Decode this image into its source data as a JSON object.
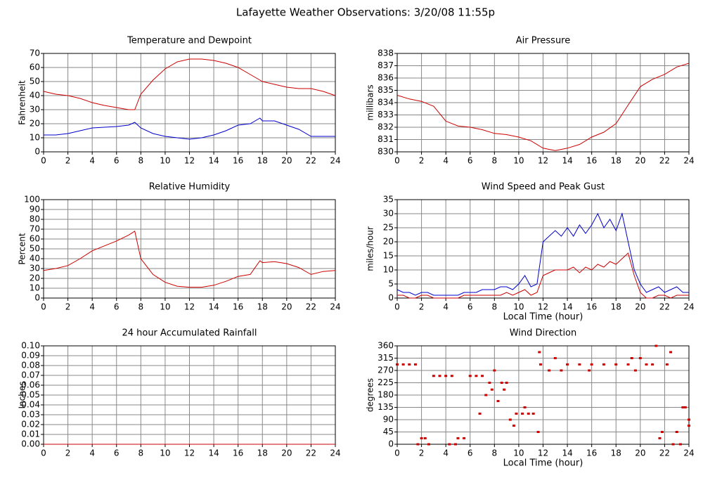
{
  "title": "Lafayette Weather Observations: 3/20/08 11:55p",
  "chart_data": [
    {
      "type": "line",
      "title": "Temperature and Dewpoint",
      "ylabel": "Fahrenheit",
      "x": [
        0,
        1,
        2,
        3,
        4,
        5,
        6,
        7,
        7.5,
        8,
        9,
        10,
        11,
        12,
        13,
        14,
        15,
        16,
        17,
        17.8,
        18,
        19,
        20,
        21,
        22,
        23,
        24
      ],
      "series": [
        {
          "color": "#cc0000",
          "values": [
            43,
            41,
            40,
            38,
            35,
            33,
            31.5,
            30,
            30,
            41,
            51,
            59,
            64,
            66,
            66,
            65,
            63,
            60,
            55,
            51,
            50,
            48,
            46,
            45,
            45,
            43,
            40
          ]
        },
        {
          "color": "#0000cc",
          "values": [
            12,
            12,
            13,
            15,
            17,
            17.5,
            18,
            19,
            21,
            17,
            13,
            11,
            10,
            9,
            10,
            12,
            15,
            19,
            20,
            24,
            22,
            22,
            19,
            16,
            11,
            11,
            11
          ]
        }
      ],
      "xlim": [
        0,
        24
      ],
      "xticks": [
        0,
        2,
        4,
        6,
        8,
        10,
        12,
        14,
        16,
        18,
        20,
        22,
        24
      ],
      "ylim": [
        0,
        70
      ],
      "yticks": [
        0,
        10,
        20,
        30,
        40,
        50,
        60,
        70
      ],
      "grid": true
    },
    {
      "type": "line",
      "title": "Air Pressure",
      "ylabel": "millibars",
      "x": [
        0,
        1,
        2,
        3,
        4,
        5,
        6,
        7,
        8,
        9,
        10,
        11,
        12,
        13,
        14,
        15,
        16,
        17,
        18,
        19,
        20,
        21,
        22,
        23,
        24
      ],
      "series": [
        {
          "color": "#cc0000",
          "values": [
            834.6,
            834.3,
            834.1,
            833.7,
            832.5,
            832.1,
            832.0,
            831.8,
            831.5,
            831.4,
            831.2,
            830.9,
            830.3,
            830.1,
            830.3,
            830.6,
            831.2,
            831.6,
            832.3,
            833.8,
            835.3,
            835.9,
            836.3,
            836.9,
            837.2
          ]
        }
      ],
      "xlim": [
        0,
        24
      ],
      "xticks": [
        0,
        2,
        4,
        6,
        8,
        10,
        12,
        14,
        16,
        18,
        20,
        22,
        24
      ],
      "ylim": [
        830,
        838
      ],
      "yticks": [
        830,
        831,
        832,
        833,
        834,
        835,
        836,
        837,
        838
      ],
      "grid": true
    },
    {
      "type": "line",
      "title": "Relative Humidity",
      "ylabel": "Percent",
      "x": [
        0,
        1,
        2,
        3,
        4,
        5,
        6,
        7,
        7.5,
        8,
        9,
        10,
        11,
        12,
        13,
        14,
        15,
        16,
        17,
        17.8,
        18,
        19,
        20,
        21,
        22,
        23,
        24
      ],
      "series": [
        {
          "color": "#cc0000",
          "values": [
            28,
            30,
            33,
            40,
            48,
            53,
            58,
            64,
            68,
            40,
            24,
            16,
            12,
            11,
            11,
            13,
            17,
            22,
            24,
            38,
            36,
            37,
            35,
            31,
            24,
            27,
            28
          ]
        }
      ],
      "xlim": [
        0,
        24
      ],
      "xticks": [
        0,
        2,
        4,
        6,
        8,
        10,
        12,
        14,
        16,
        18,
        20,
        22,
        24
      ],
      "ylim": [
        0,
        100
      ],
      "yticks": [
        0,
        10,
        20,
        30,
        40,
        50,
        60,
        70,
        80,
        90,
        100
      ],
      "grid": true
    },
    {
      "type": "line",
      "title": "Wind Speed and Peak Gust",
      "ylabel": "miles/hour",
      "xlabel": "Local Time (hour)",
      "x": [
        0,
        0.5,
        1,
        1.5,
        2,
        2.5,
        3,
        3.5,
        4,
        4.5,
        5,
        5.5,
        6,
        6.5,
        7,
        7.5,
        8,
        8.5,
        9,
        9.5,
        10,
        10.5,
        11,
        11.5,
        12,
        12.5,
        13,
        13.5,
        14,
        14.5,
        15,
        15.5,
        16,
        16.5,
        17,
        17.5,
        18,
        18.5,
        19,
        19.5,
        20,
        20.5,
        21,
        21.5,
        22,
        22.5,
        23,
        23.5,
        24
      ],
      "series": [
        {
          "color": "#0000cc",
          "values": [
            3,
            2,
            2,
            1,
            2,
            2,
            1,
            1,
            1,
            1,
            1,
            2,
            2,
            2,
            3,
            3,
            3,
            4,
            4,
            3,
            5,
            8,
            4,
            5,
            20,
            22,
            24,
            22,
            25,
            22,
            26,
            23,
            26,
            30,
            25,
            28,
            24,
            30,
            20,
            10,
            5,
            2,
            3,
            4,
            2,
            3,
            4,
            2,
            2
          ]
        },
        {
          "color": "#cc0000",
          "values": [
            1,
            1,
            0,
            0,
            1,
            1,
            0,
            0,
            0,
            0,
            0,
            1,
            1,
            1,
            1,
            1,
            1,
            1,
            2,
            1,
            2,
            3,
            1,
            2,
            8,
            9,
            10,
            10,
            10,
            11,
            9,
            11,
            10,
            12,
            11,
            13,
            12,
            14,
            16,
            8,
            2,
            0,
            0,
            1,
            1,
            0,
            1,
            1,
            1
          ]
        }
      ],
      "xlim": [
        0,
        24
      ],
      "xticks": [
        0,
        2,
        4,
        6,
        8,
        10,
        12,
        14,
        16,
        18,
        20,
        22,
        24
      ],
      "ylim": [
        0,
        35
      ],
      "yticks": [
        0,
        5,
        10,
        15,
        20,
        25,
        30,
        35
      ],
      "grid": true
    },
    {
      "type": "line",
      "title": "24 hour Accumulated Rainfall",
      "ylabel": "Inches",
      "x": [
        0,
        24
      ],
      "series": [
        {
          "color": "#cc0000",
          "values": [
            0,
            0
          ]
        }
      ],
      "xlim": [
        0,
        24
      ],
      "xticks": [
        0,
        2,
        4,
        6,
        8,
        10,
        12,
        14,
        16,
        18,
        20,
        22,
        24
      ],
      "ylim": [
        0,
        0.1
      ],
      "yticks": [
        {
          "value": 0,
          "label": "0.00"
        },
        {
          "value": 0.01,
          "label": "0.01"
        },
        {
          "value": 0.02,
          "label": "0.02"
        },
        {
          "value": 0.03,
          "label": "0.03"
        },
        {
          "value": 0.04,
          "label": "0.04"
        },
        {
          "value": 0.05,
          "label": "0.05"
        },
        {
          "value": 0.06,
          "label": "0.06"
        },
        {
          "value": 0.07,
          "label": "0.07"
        },
        {
          "value": 0.08,
          "label": "0.08"
        },
        {
          "value": 0.09,
          "label": "0.09"
        },
        {
          "value": 0.1,
          "label": "0.10"
        }
      ],
      "grid": true
    },
    {
      "type": "scatter",
      "title": "Wind Direction",
      "ylabel": "degrees",
      "xlabel": "Local Time (hour)",
      "x": [
        0,
        0.5,
        1,
        1.5,
        1.7,
        2,
        2.3,
        2.6,
        3,
        3.5,
        4,
        4.3,
        4.5,
        4.8,
        5,
        5.5,
        6,
        6.5,
        6.8,
        7,
        7.3,
        7.6,
        7.8,
        8,
        8.3,
        8.6,
        8.8,
        9,
        9.3,
        9.6,
        9.8,
        10.3,
        10.5,
        10.8,
        11.2,
        11.6,
        11.7,
        11.8,
        12.5,
        13,
        13.5,
        14,
        15,
        15.8,
        16,
        17,
        18,
        19,
        19.3,
        19.6,
        20,
        20.5,
        21,
        21.3,
        21.6,
        21.8,
        22.2,
        22.5,
        22.7,
        23,
        23.3,
        23.5,
        23.7,
        24,
        24
      ],
      "series": [
        {
          "color": "#cc0000",
          "values": [
            292,
            292,
            292,
            292,
            0,
            22,
            22,
            0,
            250,
            250,
            250,
            0,
            250,
            0,
            22,
            22,
            250,
            250,
            112,
            250,
            180,
            225,
            200,
            270,
            158,
            225,
            200,
            225,
            90,
            68,
            112,
            112,
            135,
            112,
            112,
            45,
            337,
            292,
            270,
            315,
            270,
            292,
            292,
            270,
            292,
            292,
            292,
            292,
            315,
            270,
            315,
            292,
            292,
            360,
            22,
            45,
            292,
            337,
            0,
            45,
            0,
            135,
            135,
            90,
            68
          ]
        }
      ],
      "xlim": [
        0,
        24
      ],
      "xticks": [
        0,
        2,
        4,
        6,
        8,
        10,
        12,
        14,
        16,
        18,
        20,
        22,
        24
      ],
      "ylim": [
        0,
        360
      ],
      "yticks": [
        0,
        45,
        90,
        135,
        180,
        225,
        270,
        315,
        360
      ],
      "grid": true
    }
  ]
}
